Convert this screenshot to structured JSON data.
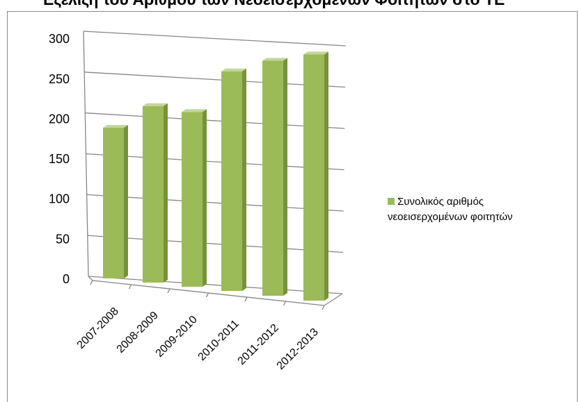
{
  "chart_data": {
    "type": "bar",
    "three_d": true,
    "title": "Εξέλιξη του Αριθμού των Νεοεισερχομένων Φοιτητών στο ΤΕ",
    "categories": [
      "2007-2008",
      "2008-2009",
      "2009-2010",
      "2010-2011",
      "2011-2012",
      "2012-2013"
    ],
    "series": [
      {
        "name": "Συνολικός αριθμός νεοεισερχομένων φοιτητών",
        "values": [
          175,
          205,
          203,
          255,
          273,
          286
        ]
      }
    ],
    "yticks": [
      0,
      50,
      100,
      150,
      200,
      250,
      300
    ],
    "ylim": [
      0,
      300
    ],
    "grid": true,
    "legend_position": "right",
    "colors": {
      "bar": "#9bbb59",
      "bar_side": "#76923c",
      "bar_top": "#c3d69b",
      "grid": "#868686"
    }
  }
}
